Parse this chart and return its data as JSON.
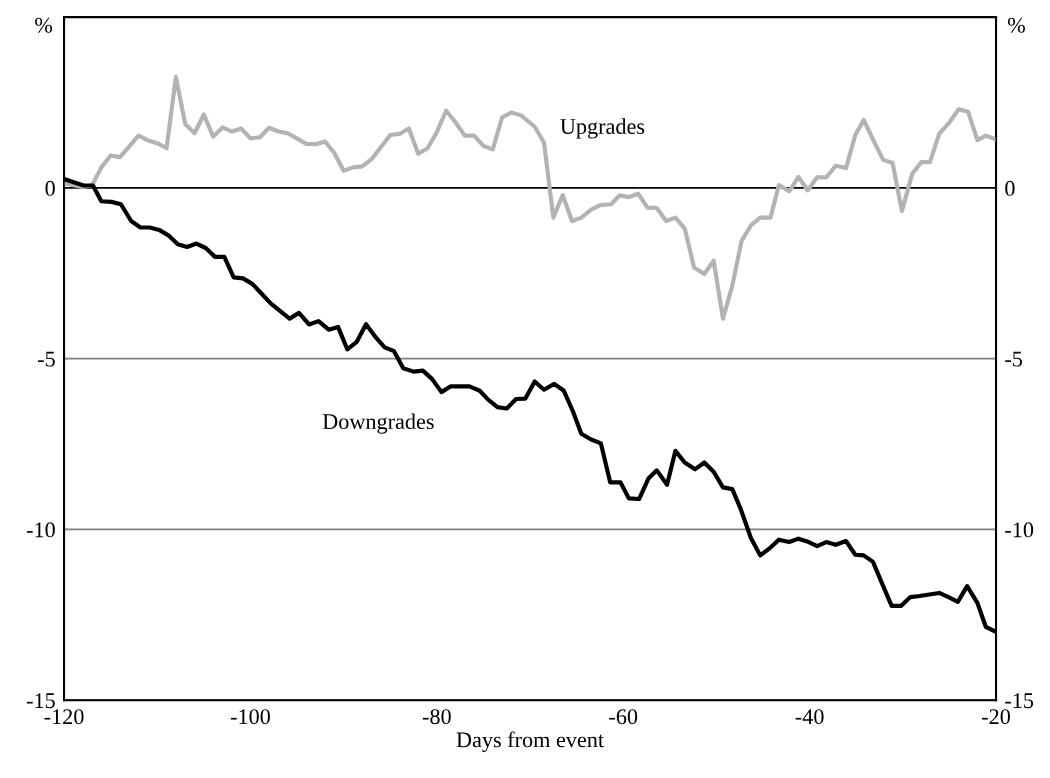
{
  "chart_data": {
    "type": "line",
    "xlabel": "Days from event",
    "ylabel": "%",
    "y2label": "%",
    "xlim": [
      -120,
      -20
    ],
    "xticks": [
      {
        "value": -120,
        "label": "-120"
      },
      {
        "value": -100,
        "label": "-100"
      },
      {
        "value": -80,
        "label": "-80"
      },
      {
        "value": -60,
        "label": "-60"
      },
      {
        "value": -40,
        "label": "-40"
      },
      {
        "value": -20,
        "label": "-20"
      }
    ],
    "ylim": [
      -15,
      5
    ],
    "yticks": [
      {
        "value": -15,
        "label": "-15"
      },
      {
        "value": -10,
        "label": "-10"
      },
      {
        "value": -5,
        "label": "-5"
      },
      0
    ],
    "y2lim": [
      -15,
      5
    ],
    "y2ticks": [
      {
        "value": -15,
        "label": "-15"
      },
      {
        "value": -10,
        "label": "-10"
      },
      {
        "value": -5,
        "label": "-5"
      },
      0
    ],
    "grid": "y",
    "legend": false,
    "marker": "none",
    "line_style": "solid",
    "series": [
      {
        "name": "Upgrades",
        "color": "#b3b3b3",
        "x": [
          -120,
          -118,
          -117,
          -116,
          -115,
          -114,
          -112,
          -111,
          -110,
          -109,
          -108,
          -107,
          -106,
          -105,
          -104,
          -103,
          -102,
          -101,
          -100,
          -99,
          -98,
          -97,
          -96,
          -94,
          -93,
          -92,
          -91,
          -90,
          -89,
          -88,
          -87,
          -85,
          -84,
          -83,
          -82,
          -81,
          -80,
          -79,
          -78,
          -77,
          -76,
          -75,
          -74,
          -73,
          -72,
          -71,
          -69.5,
          -68.5,
          -67.5,
          -66.5,
          -65.5,
          -64.5,
          -63.4,
          -62.4,
          -61.3,
          -60.4,
          -59.4,
          -58.4,
          -57.4,
          -56.4,
          -55.4,
          -54.4,
          -53.4,
          -52.4,
          -51.3,
          -50.3,
          -49.3,
          -48.3,
          -47.3,
          -46.3,
          -45.3,
          -44.2,
          -43.3,
          -42.2,
          -41.2,
          -40.2,
          -39.2,
          -38.2,
          -37.2,
          -36.1,
          -35.1,
          -34.2,
          -33.1,
          -32.1,
          -31.1,
          -30.1,
          -29.0,
          -28.0,
          -27.1,
          -26.1,
          -25.0,
          -24.0,
          -23.0,
          -22.0,
          -21.1,
          -20
        ],
        "values": [
          0.13,
          0.03,
          0.07,
          0.6,
          0.95,
          0.9,
          1.53,
          1.39,
          1.31,
          1.16,
          3.25,
          1.87,
          1.6,
          2.15,
          1.5,
          1.77,
          1.65,
          1.74,
          1.45,
          1.48,
          1.76,
          1.65,
          1.6,
          1.29,
          1.28,
          1.36,
          1.02,
          0.5,
          0.6,
          0.63,
          0.84,
          1.55,
          1.58,
          1.74,
          1.0,
          1.16,
          1.63,
          2.26,
          1.92,
          1.53,
          1.53,
          1.23,
          1.13,
          2.06,
          2.21,
          2.13,
          1.79,
          1.33,
          -0.87,
          -0.21,
          -0.97,
          -0.87,
          -0.63,
          -0.5,
          -0.48,
          -0.22,
          -0.27,
          -0.17,
          -0.58,
          -0.59,
          -0.97,
          -0.87,
          -1.19,
          -2.33,
          -2.52,
          -2.13,
          -3.83,
          -2.86,
          -1.55,
          -1.1,
          -0.87,
          -0.87,
          0.08,
          -0.1,
          0.32,
          -0.07,
          0.31,
          0.31,
          0.65,
          0.58,
          1.55,
          1.99,
          1.36,
          0.82,
          0.73,
          -0.68,
          0.41,
          0.76,
          0.75,
          1.58,
          1.92,
          2.3,
          2.23,
          1.4,
          1.53,
          1.42
        ]
      },
      {
        "name": "Downgrades",
        "color": "#000000",
        "x": [
          -120,
          -117.9,
          -116.9,
          -116,
          -114.9,
          -113.9,
          -112.8,
          -111.8,
          -110.8,
          -109.8,
          -108.8,
          -107.8,
          -106.8,
          -105.8,
          -104.8,
          -103.8,
          -102.8,
          -101.8,
          -100.8,
          -99.8,
          -98.8,
          -97.8,
          -96.7,
          -95.8,
          -94.8,
          -93.7,
          -92.7,
          -91.6,
          -90.6,
          -89.6,
          -88.6,
          -87.6,
          -86.6,
          -85.6,
          -84.6,
          -83.6,
          -82.5,
          -81.5,
          -80.5,
          -79.5,
          -78.5,
          -77.5,
          -76.5,
          -75.4,
          -74.5,
          -73.5,
          -72.5,
          -71.5,
          -70.5,
          -69.5,
          -68.5,
          -67.4,
          -66.4,
          -65.4,
          -64.5,
          -63.5,
          -62.4,
          -61.4,
          -60.3,
          -59.4,
          -58.3,
          -57.3,
          -56.4,
          -55.3,
          -54.4,
          -53.4,
          -52.3,
          -51.3,
          -50.3,
          -49.3,
          -48.3,
          -47.4,
          -46.3,
          -45.3,
          -44.2,
          -43.3,
          -42.2,
          -41.2,
          -40.1,
          -39.2,
          -38.2,
          -37.2,
          -36.1,
          -35.1,
          -34.2,
          -33.2,
          -32.2,
          -31.2,
          -30.2,
          -29.2,
          -28.2,
          -26.1,
          -25.1,
          -24.1,
          -23.1,
          -22.0,
          -21.1,
          -20
        ],
        "values": [
          0.26,
          0.07,
          0.07,
          -0.39,
          -0.41,
          -0.48,
          -0.97,
          -1.16,
          -1.16,
          -1.23,
          -1.39,
          -1.65,
          -1.73,
          -1.63,
          -1.76,
          -2.02,
          -2.02,
          -2.62,
          -2.65,
          -2.81,
          -3.1,
          -3.39,
          -3.63,
          -3.83,
          -3.66,
          -4.0,
          -3.9,
          -4.15,
          -4.07,
          -4.73,
          -4.51,
          -3.99,
          -4.36,
          -4.67,
          -4.78,
          -5.28,
          -5.38,
          -5.35,
          -5.6,
          -5.98,
          -5.81,
          -5.81,
          -5.81,
          -5.94,
          -6.2,
          -6.42,
          -6.46,
          -6.18,
          -6.17,
          -5.67,
          -5.91,
          -5.74,
          -5.93,
          -6.54,
          -7.2,
          -7.36,
          -7.48,
          -8.62,
          -8.62,
          -9.09,
          -9.11,
          -8.51,
          -8.27,
          -8.69,
          -7.7,
          -8.04,
          -8.24,
          -8.04,
          -8.31,
          -8.77,
          -8.82,
          -9.4,
          -10.25,
          -10.76,
          -10.53,
          -10.3,
          -10.37,
          -10.27,
          -10.37,
          -10.49,
          -10.37,
          -10.45,
          -10.34,
          -10.74,
          -10.76,
          -10.95,
          -11.6,
          -12.24,
          -12.24,
          -11.98,
          -11.95,
          -11.86,
          -11.98,
          -12.12,
          -11.66,
          -12.15,
          -12.85,
          -13.0
        ]
      }
    ]
  }
}
